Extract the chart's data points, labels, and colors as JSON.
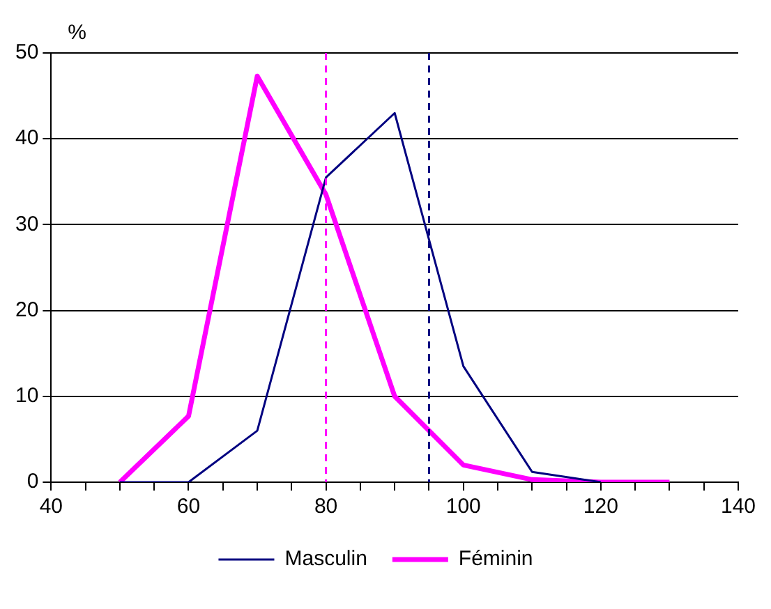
{
  "chart_data": {
    "type": "line",
    "ylabel": "%",
    "xlim": [
      40,
      140
    ],
    "xticks": [
      40,
      {
        "value": 45,
        "label": null
      },
      {
        "value": 50,
        "label": null
      },
      {
        "value": 55,
        "label": null
      },
      60,
      {
        "value": 65,
        "label": null
      },
      {
        "value": 70,
        "label": null
      },
      {
        "value": 75,
        "label": null
      },
      80,
      {
        "value": 85,
        "label": null
      },
      {
        "value": 90,
        "label": null
      },
      {
        "value": 95,
        "label": null
      },
      100,
      {
        "value": 105,
        "label": null
      },
      {
        "value": 110,
        "label": null
      },
      {
        "value": 115,
        "label": null
      },
      120,
      {
        "value": 125,
        "label": null
      },
      {
        "value": 130,
        "label": null
      },
      {
        "value": 135,
        "label": null
      },
      140
    ],
    "ylim": [
      0,
      50
    ],
    "yticks": [
      0,
      10,
      20,
      30,
      40,
      50
    ],
    "grid": "y",
    "legend": "bottom",
    "marker": "none",
    "line_style": "solid",
    "series": [
      {
        "name": "Masculin",
        "color": "#000080",
        "x": [
          50,
          60,
          70,
          80,
          90,
          100,
          110,
          120
        ],
        "values": [
          0,
          0,
          6,
          35.5,
          43,
          13.5,
          1.2,
          0
        ]
      },
      {
        "name": "Féminin",
        "color": "#ff00ff",
        "x": [
          50,
          60,
          70,
          80,
          90,
          100,
          110,
          120,
          130
        ],
        "values": [
          0,
          7.7,
          47.3,
          33.5,
          10,
          2,
          0.3,
          0,
          0
        ]
      }
    ],
    "ref_lines": [
      {
        "axis": "x",
        "value": 80,
        "color": "#ff00ff",
        "line_style": "dashed"
      },
      {
        "axis": "x",
        "value": 95,
        "color": "#000080",
        "line_style": "dashed"
      }
    ]
  }
}
